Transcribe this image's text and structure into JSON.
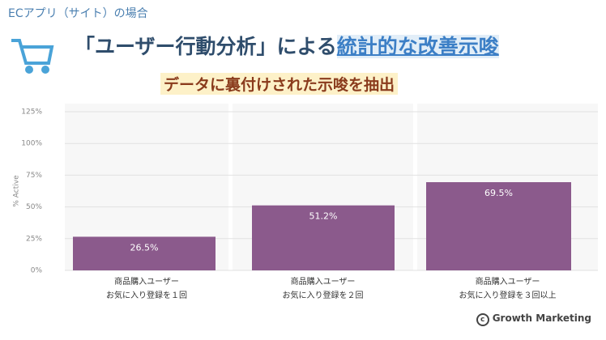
{
  "header": {
    "context": "ECアプリ（サイト）の場合",
    "title_part1": "「ユーザー行動分析」による",
    "title_part2": "統計的な改善示唆",
    "subtitle": "データに裏付けされた示唆を抽出"
  },
  "chart_data": {
    "type": "bar",
    "ylabel": "% Active",
    "categories": [
      "商品購入ユーザー\nお気に入り登録を１回",
      "商品購入ユーザー\nお気に入り登録を２回",
      "商品購入ユーザー\nお気に入り登録を３回以上"
    ],
    "values": [
      26.5,
      51.2,
      69.5
    ],
    "value_labels": [
      "26.5%",
      "51.2%",
      "69.5%"
    ],
    "color": "#8b5a8c",
    "ylim": [
      0,
      125
    ],
    "yticks": [
      {
        "value": 0,
        "label": "0%"
      },
      {
        "value": 25,
        "label": "25%"
      },
      {
        "value": 50,
        "label": "50%"
      },
      {
        "value": 75,
        "label": "75%"
      },
      {
        "value": 100,
        "label": "100%"
      },
      {
        "value": 125,
        "label": "125%"
      }
    ],
    "grid": true
  },
  "footer": {
    "credit": "Growth Marketing"
  }
}
